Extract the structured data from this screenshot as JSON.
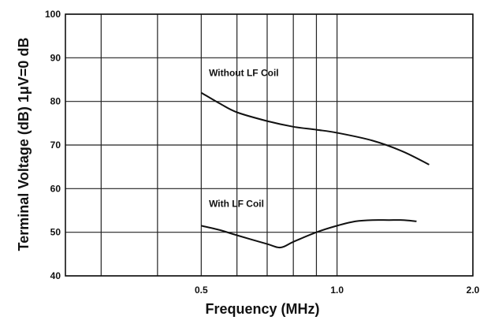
{
  "chart_data": {
    "type": "line",
    "xlabel": "Frequency (MHz)",
    "ylabel": "Terminal Voltage (dB) 1μV=0 dB",
    "ylim": [
      40,
      100
    ],
    "xlim": [
      0.25,
      2.0
    ],
    "x_scale": "log",
    "y_ticks": [
      40,
      50,
      60,
      70,
      80,
      90,
      100
    ],
    "x_tick_labels": [
      {
        "value": 0.5,
        "label": "0.5"
      },
      {
        "value": 1.0,
        "label": "1.0"
      },
      {
        "value": 2.0,
        "label": "2.0"
      }
    ],
    "x_gridlines": [
      0.3,
      0.4,
      0.5,
      0.6,
      0.7,
      0.8,
      0.9,
      1.0,
      2.0
    ],
    "grid": true,
    "series": [
      {
        "name": "Without LF Coil",
        "x": [
          0.5,
          0.55,
          0.6,
          0.7,
          0.8,
          0.9,
          1.0,
          1.2,
          1.4,
          1.6
        ],
        "y": [
          82,
          79.5,
          77.5,
          75.5,
          74.2,
          73.5,
          72.8,
          71.0,
          68.5,
          65.5
        ]
      },
      {
        "name": "With LF Coil",
        "x": [
          0.5,
          0.55,
          0.6,
          0.7,
          0.75,
          0.8,
          0.9,
          1.0,
          1.1,
          1.2,
          1.3,
          1.4,
          1.5
        ],
        "y": [
          51.5,
          50.5,
          49.3,
          47.3,
          46.5,
          47.8,
          50.0,
          51.5,
          52.5,
          52.8,
          52.8,
          52.8,
          52.5
        ]
      }
    ]
  }
}
